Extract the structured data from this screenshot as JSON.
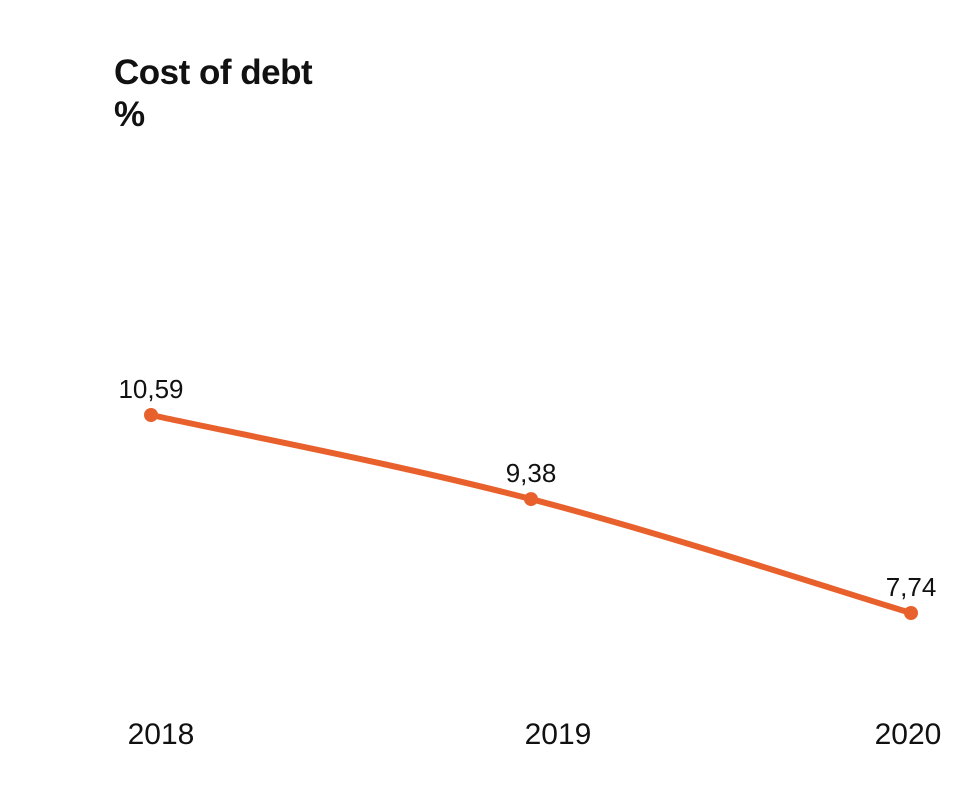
{
  "chart_data": {
    "type": "line",
    "title": "Cost of debt",
    "unit": "%",
    "categories": [
      "2018",
      "2019",
      "2020"
    ],
    "series": [
      {
        "values": [
          10.59,
          9.38,
          7.74
        ],
        "labels": [
          "10,59",
          "9,38",
          "7,74"
        ],
        "color": "#E8612C"
      }
    ],
    "xlabel": "",
    "ylabel": "",
    "grid": false,
    "legend": "none"
  }
}
